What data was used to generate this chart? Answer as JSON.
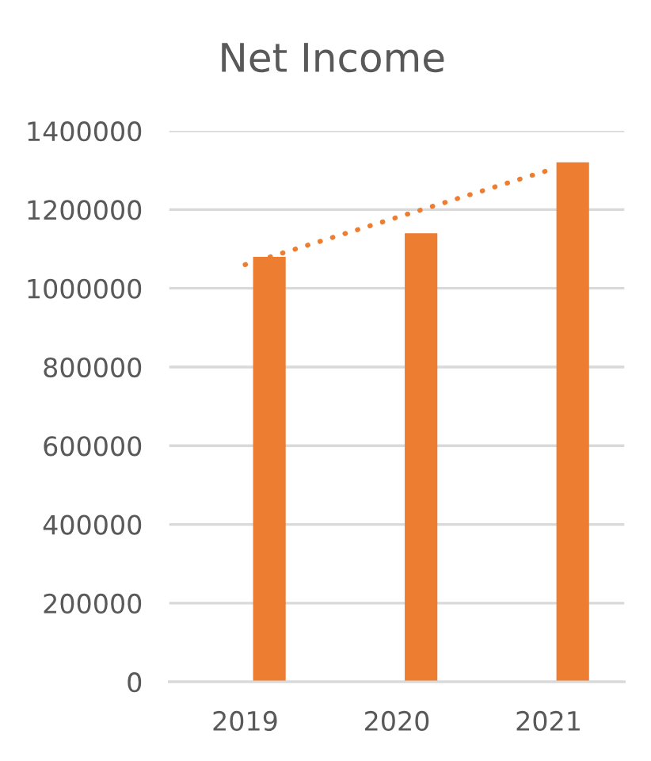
{
  "chart_data": {
    "type": "bar",
    "title": "Net Income",
    "categories": [
      "2019",
      "2020",
      "2021"
    ],
    "series": [
      {
        "color": "#ed7d31",
        "values": [
          1080000,
          1140000,
          1320000
        ]
      },
      {
        "type": "line",
        "color": "#ed7d31",
        "line_style": "dotted",
        "marker": "none",
        "values": [
          1060000,
          1180000,
          1300000
        ]
      }
    ],
    "ylim": [
      0,
      1400000
    ],
    "yticks": [
      0,
      200000,
      400000,
      600000,
      800000,
      1000000,
      1200000,
      1400000
    ],
    "grid": "y"
  }
}
